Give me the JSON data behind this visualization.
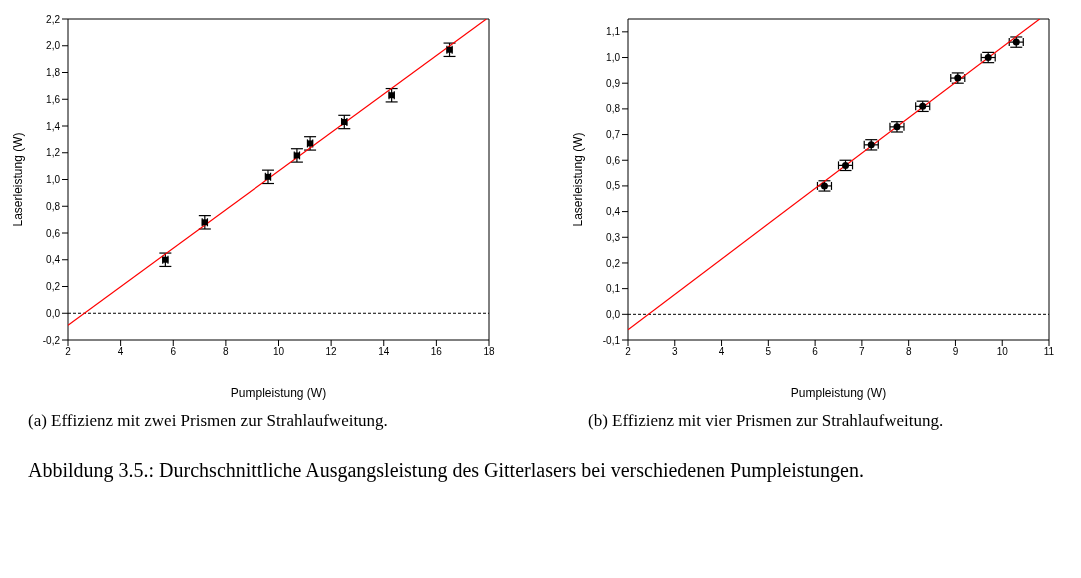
{
  "chart_data": [
    {
      "type": "scatter",
      "xlabel": "Pumpleistung (W)",
      "ylabel": "Laserleistung (W)",
      "xlim": [
        2,
        18
      ],
      "xticks": [
        2,
        4,
        6,
        8,
        10,
        12,
        14,
        16,
        18
      ],
      "ylim": [
        -0.2,
        2.2
      ],
      "yticks": [
        {
          "value": -0.2,
          "label": "-0,2"
        },
        {
          "value": 0,
          "label": "0,0"
        },
        {
          "value": 0.2,
          "label": "0,2"
        },
        {
          "value": 0.4,
          "label": "0,4"
        },
        {
          "value": 0.6,
          "label": "0,6"
        },
        {
          "value": 0.8,
          "label": "0,8"
        },
        {
          "value": 1.0,
          "label": "1,0"
        },
        {
          "value": 1.2,
          "label": "1,2"
        },
        {
          "value": 1.4,
          "label": "1,4"
        },
        {
          "value": 1.6,
          "label": "1,6"
        },
        {
          "value": 1.8,
          "label": "1,8"
        },
        {
          "value": 2.0,
          "label": "2,0"
        },
        {
          "value": 2.2,
          "label": "2,2"
        }
      ],
      "grid": false,
      "legend": false,
      "series": [
        {
          "type": "line",
          "color": "#ff0000",
          "marker": "none",
          "x": [
            2,
            17.9
          ],
          "values": [
            -0.09,
            2.2
          ]
        },
        {
          "type": "scatter",
          "color": "#000000",
          "marker": "square",
          "x": [
            5.7,
            7.2,
            9.6,
            10.7,
            11.2,
            12.5,
            14.3,
            16.5
          ],
          "values": [
            0.4,
            0.68,
            1.02,
            1.18,
            1.27,
            1.43,
            1.63,
            1.97
          ],
          "errors": [
            0.05,
            0.05,
            0.05,
            0.05,
            0.05,
            0.05,
            0.05,
            0.05
          ],
          "xerrors": [
            0.1,
            0.1,
            0.1,
            0.1,
            0.1,
            0.1,
            0.1,
            0.1
          ]
        }
      ],
      "ref_lines": [
        {
          "axis": "y",
          "value": 0,
          "color": "#000000",
          "line_style": "dotted"
        }
      ],
      "annotations": [
        "(a) Effizienz mit zwei Prismen zur Strahlaufweitung."
      ]
    },
    {
      "type": "scatter",
      "xlabel": "Pumpleistung (W)",
      "ylabel": "Laserleistung (W)",
      "xlim": [
        2,
        11
      ],
      "xticks": [
        2,
        3,
        4,
        5,
        6,
        7,
        8,
        9,
        10,
        11
      ],
      "ylim": [
        -0.1,
        1.15
      ],
      "yticks": [
        {
          "value": -0.1,
          "label": "-0,1"
        },
        {
          "value": 0,
          "label": "0,0"
        },
        {
          "value": 0.1,
          "label": "0,1"
        },
        {
          "value": 0.2,
          "label": "0,2"
        },
        {
          "value": 0.3,
          "label": "0,3"
        },
        {
          "value": 0.4,
          "label": "0,4"
        },
        {
          "value": 0.5,
          "label": "0,5"
        },
        {
          "value": 0.6,
          "label": "0,6"
        },
        {
          "value": 0.7,
          "label": "0,7"
        },
        {
          "value": 0.8,
          "label": "0,8"
        },
        {
          "value": 0.9,
          "label": "0,9"
        },
        {
          "value": 1.0,
          "label": "1,0"
        },
        {
          "value": 1.1,
          "label": "1,1"
        }
      ],
      "grid": false,
      "legend": false,
      "series": [
        {
          "type": "line",
          "color": "#ff0000",
          "marker": "none",
          "x": [
            2,
            10.8
          ],
          "values": [
            -0.06,
            1.15
          ]
        },
        {
          "type": "scatter",
          "color": "#000000",
          "marker": "circle",
          "x": [
            6.2,
            6.65,
            7.2,
            7.75,
            8.3,
            9.05,
            9.7,
            10.3
          ],
          "values": [
            0.5,
            0.58,
            0.66,
            0.73,
            0.81,
            0.92,
            1.0,
            1.06
          ],
          "errors": [
            0.02,
            0.02,
            0.02,
            0.02,
            0.02,
            0.02,
            0.02,
            0.02
          ],
          "xerrors": [
            0.15,
            0.15,
            0.15,
            0.15,
            0.15,
            0.15,
            0.15,
            0.15
          ]
        }
      ],
      "ref_lines": [
        {
          "axis": "y",
          "value": 0,
          "color": "#000000",
          "line_style": "dotted"
        }
      ],
      "annotations": [
        "(b) Effizienz mit vier Prismen zur Strahlaufweitung.",
        "Abbildung 3.5.: Durchschnittliche Ausgangsleistung des Gitterlasers bei verschiedenen Pumpleistungen."
      ]
    }
  ]
}
